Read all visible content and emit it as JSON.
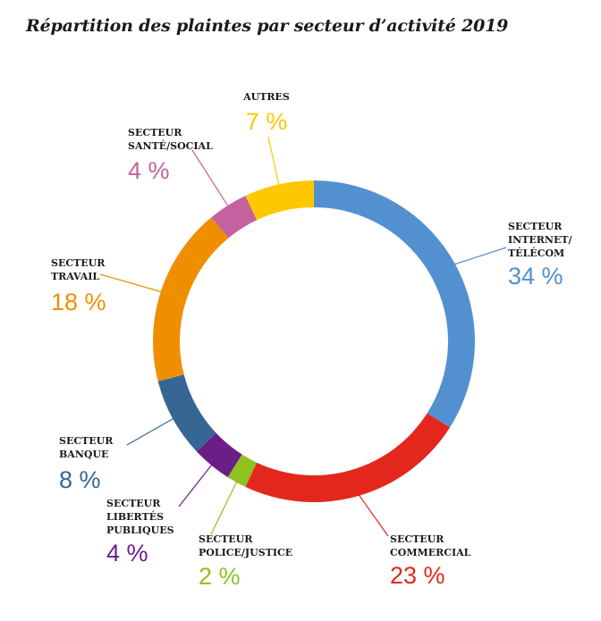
{
  "chart_data": {
    "type": "pie",
    "title": "Répartition des plaintes par secteur d’activité 2019",
    "unit": "%",
    "categories": [
      {
        "key": "internet",
        "label_lines": [
          "SECTEUR",
          "INTERNET/",
          "TÉLÉCOM"
        ],
        "value": 34,
        "value_text": "34 %",
        "color": "#5390d0"
      },
      {
        "key": "commercial",
        "label_lines": [
          "SECTEUR",
          "COMMERCIAL"
        ],
        "value": 23,
        "value_text": "23 %",
        "color": "#e4271d"
      },
      {
        "key": "police",
        "label_lines": [
          "SECTEUR",
          "POLICE/JUSTICE"
        ],
        "value": 2,
        "value_text": "2 %",
        "color": "#8dc21f"
      },
      {
        "key": "libertes",
        "label_lines": [
          "SECTEUR",
          "LIBERTÉS",
          "PUBLIQUES"
        ],
        "value": 4,
        "value_text": "4 %",
        "color": "#6a1e86"
      },
      {
        "key": "banque",
        "label_lines": [
          "SECTEUR",
          "BANQUE"
        ],
        "value": 8,
        "value_text": "8 %",
        "color": "#366694"
      },
      {
        "key": "travail",
        "label_lines": [
          "SECTEUR",
          "TRAVAIL"
        ],
        "value": 18,
        "value_text": "18 %",
        "color": "#ef8f00"
      },
      {
        "key": "sante",
        "label_lines": [
          "SECTEUR",
          "SANTÉ/SOCIAL"
        ],
        "value": 4,
        "value_text": "4 %",
        "color": "#c4619f"
      },
      {
        "key": "autres",
        "label_lines": [
          "AUTRES"
        ],
        "value": 7,
        "value_text": "7 %",
        "color": "#fdc800"
      }
    ]
  }
}
